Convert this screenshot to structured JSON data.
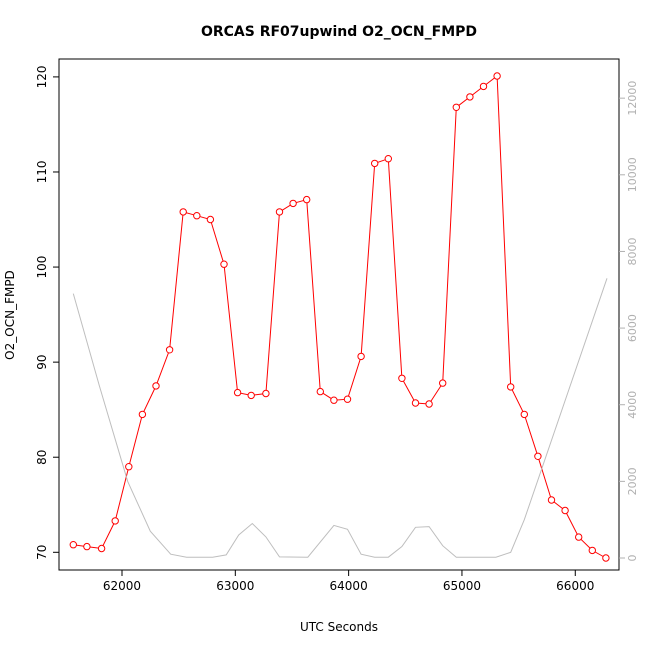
{
  "chart_data": {
    "type": "line",
    "title": "ORCAS RF07upwind O2_OCN_FMPD",
    "xlabel": "UTC Seconds",
    "ylabel": "O2_OCN_FMPD",
    "xlim": [
      61550,
      66280
    ],
    "ylim": [
      69.4,
      120.2
    ],
    "ylim_right": [
      0,
      12500
    ],
    "x_ticks": [
      62000,
      63000,
      64000,
      65000,
      66000
    ],
    "y_ticks": [
      70,
      80,
      90,
      100,
      110,
      120
    ],
    "y2_ticks": [
      0,
      2000,
      4000,
      6000,
      8000,
      10000,
      12000
    ],
    "grid": false,
    "series": [
      {
        "color": "#ff0000",
        "axis": "left",
        "x": [
          61570,
          61690,
          61820,
          61940,
          62060,
          62180,
          62300,
          62420,
          62540,
          62660,
          62780,
          62900,
          63020,
          63140,
          63270,
          63390,
          63510,
          63630,
          63750,
          63870,
          63990,
          64110,
          64230,
          64350,
          64470,
          64590,
          64710,
          64830,
          64950,
          65070,
          65190,
          65310,
          65430,
          65550,
          65670,
          65790,
          65910,
          66030,
          66150,
          66270
        ],
        "values": [
          70.8,
          70.6,
          70.4,
          73.3,
          79.0,
          84.5,
          87.5,
          91.3,
          105.8,
          105.4,
          105.0,
          100.3,
          86.8,
          86.5,
          86.7,
          105.8,
          106.7,
          107.1,
          86.9,
          86.0,
          86.1,
          90.6,
          110.9,
          111.4,
          88.3,
          85.7,
          85.6,
          87.8,
          116.8,
          117.9,
          119.0,
          120.1,
          87.4,
          84.5,
          80.1,
          75.5,
          74.4,
          71.6,
          70.2,
          69.4
        ]
      },
      {
        "color": "#bebebe",
        "axis": "right",
        "x": [
          61570,
          61800,
          62050,
          62250,
          62430,
          62570,
          62800,
          62920,
          63030,
          63150,
          63270,
          63390,
          63640,
          63870,
          63990,
          64110,
          64230,
          64350,
          64470,
          64590,
          64710,
          64830,
          64950,
          65300,
          65430,
          65550,
          66280
        ],
        "values": [
          6900,
          4500,
          2000,
          700,
          100,
          20,
          20,
          80,
          600,
          900,
          550,
          30,
          20,
          850,
          750,
          100,
          20,
          20,
          300,
          800,
          820,
          320,
          20,
          20,
          150,
          1000,
          7300
        ]
      }
    ]
  }
}
